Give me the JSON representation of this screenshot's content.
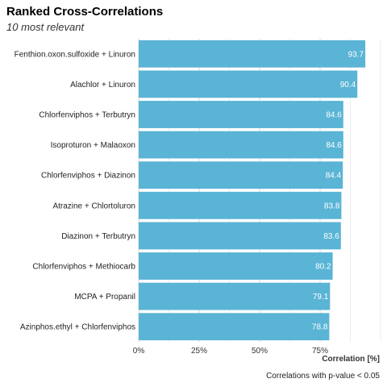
{
  "chart_data": {
    "type": "bar",
    "orientation": "horizontal",
    "title": "Ranked Cross-Correlations",
    "subtitle": "10 most relevant",
    "xlabel": "Correlation [%]",
    "ylabel": "",
    "caption": "Correlations with p-value < 0.05",
    "xlim": [
      0,
      100
    ],
    "x_ticks": [
      0,
      25,
      50,
      75
    ],
    "x_tick_labels": [
      "0%",
      "25%",
      "50%",
      "75%"
    ],
    "grid": true,
    "bar_color": "#5ab4d5",
    "categories": [
      "Fenthion.oxon.sulfoxide + Linuron",
      "Alachlor + Linuron",
      "Chlorfenviphos + Terbutryn",
      "Isoproturon + Malaoxon",
      "Chlorfenviphos + Diazinon",
      "Atrazine + Chlortoluron",
      "Diazinon + Terbutryn",
      "Chlorfenviphos + Methiocarb",
      "MCPA + Propanil",
      "Azinphos.ethyl + Chlorfenviphos"
    ],
    "values": [
      93.7,
      90.4,
      84.6,
      84.6,
      84.4,
      83.8,
      83.6,
      80.2,
      79.1,
      78.8
    ]
  }
}
